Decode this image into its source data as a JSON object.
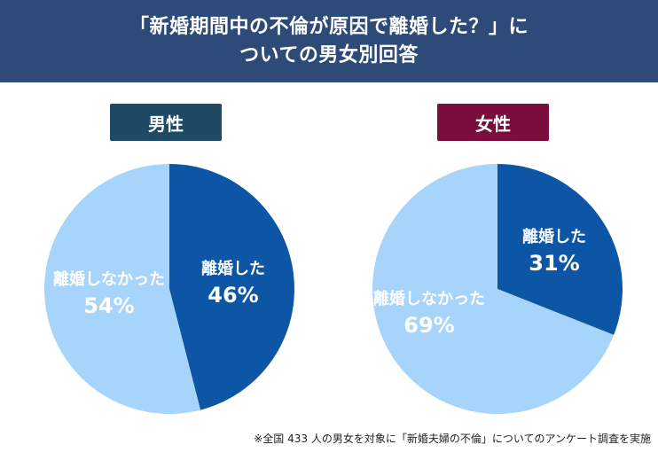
{
  "header": {
    "title_line1": "「新婚期間中の不倫が原因で離婚した？」に",
    "title_line2": "ついての男女別回答"
  },
  "chart_data": [
    {
      "type": "pie",
      "title": "男性",
      "slices": [
        {
          "label": "離婚した",
          "value": 46,
          "display": "46%",
          "color": "#0d56a6",
          "text_color": "#ffffff"
        },
        {
          "label": "離婚しなかった",
          "value": 54,
          "display": "54%",
          "color": "#a6d4fa",
          "text_color": "#ffffff"
        }
      ]
    },
    {
      "type": "pie",
      "title": "女性",
      "slices": [
        {
          "label": "離婚した",
          "value": 31,
          "display": "31%",
          "color": "#0d56a6",
          "text_color": "#ffffff"
        },
        {
          "label": "離婚しなかった",
          "value": 69,
          "display": "69%",
          "color": "#a6d4fa",
          "text_color": "#ffffff"
        }
      ]
    }
  ],
  "footnote": "※全国 433 人の男女を対象に「新婚夫婦の不倫」についてのアンケート調査を実施"
}
